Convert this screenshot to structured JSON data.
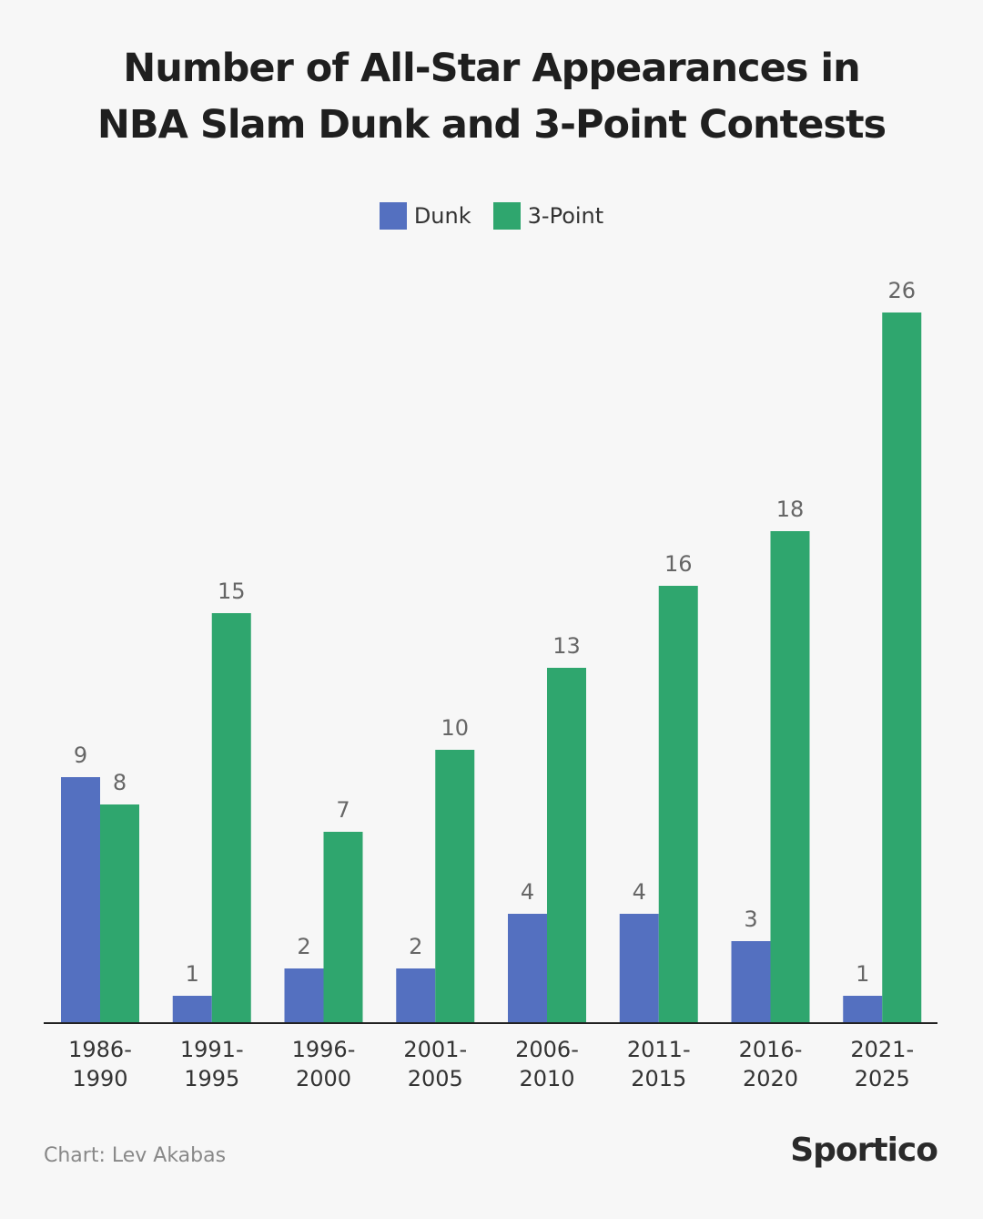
{
  "chart_data": {
    "type": "bar",
    "title_lines": [
      "Number of All-Star Appearances in",
      "NBA Slam Dunk and 3-Point Contests"
    ],
    "categories": [
      [
        "1986-",
        "1990"
      ],
      [
        "1991-",
        "1995"
      ],
      [
        "1996-",
        "2000"
      ],
      [
        "2001-",
        "2005"
      ],
      [
        "2006-",
        "2010"
      ],
      [
        "2011-",
        "2015"
      ],
      [
        "2016-",
        "2020"
      ],
      [
        "2021-",
        "2025"
      ]
    ],
    "series": [
      {
        "name": "Dunk",
        "color": "#5470c0",
        "values": [
          9,
          1,
          2,
          2,
          4,
          4,
          3,
          1
        ]
      },
      {
        "name": "3-Point",
        "color": "#2fa66e",
        "values": [
          8,
          15,
          7,
          10,
          13,
          16,
          18,
          26
        ]
      }
    ],
    "xlabel": "",
    "ylabel": "",
    "ylim": [
      0,
      26
    ],
    "grid": false,
    "legend_position": "top-center"
  },
  "footer": {
    "credit": "Chart: Lev Akabas",
    "brand": "Sportico"
  }
}
